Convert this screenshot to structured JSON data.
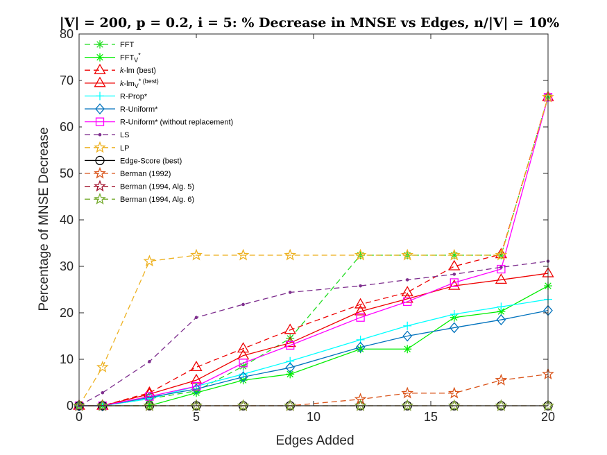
{
  "chart_data": {
    "type": "line",
    "title": "|V| = 200, p = 0.2, i = 5: % Decrease in MNSE vs Edges, n/|V| = 10%",
    "xlabel": "Edges Added",
    "ylabel": "Percentage of MNSE Decrease",
    "xlim": [
      0,
      20
    ],
    "ylim": [
      0,
      80
    ],
    "xticks": [
      0,
      5,
      10,
      15,
      20
    ],
    "yticks": [
      0,
      10,
      20,
      30,
      40,
      50,
      60,
      70,
      80
    ],
    "grid": false,
    "legend_position": "top-left",
    "x": [
      0,
      1,
      3,
      5,
      7,
      9,
      12,
      14,
      16,
      18,
      20
    ],
    "series": [
      {
        "name": "FFT",
        "legend": [
          {
            "t": "FFT"
          }
        ],
        "color": "#22dd22",
        "dash": "8,5",
        "marker": "asterisk",
        "values": [
          0,
          0,
          1.5,
          3.2,
          8.5,
          14.5,
          32.4,
          32.4,
          32.4,
          32.4,
          66.4
        ]
      },
      {
        "name": "FFT_V*",
        "legend": [
          {
            "t": "FFT"
          },
          {
            "t": "V",
            "sub": true
          },
          {
            "t": "*",
            "sup": true
          }
        ],
        "color": "#00ee00",
        "dash": "",
        "marker": "asterisk",
        "values": [
          0,
          0,
          0,
          2.8,
          5.5,
          6.8,
          12.2,
          12.2,
          19,
          20.3,
          25.8
        ]
      },
      {
        "name": "k-lm (best)",
        "legend": [
          {
            "t": "k",
            "italic": true
          },
          {
            "t": "-lm (best)"
          }
        ],
        "color": "#ee0000",
        "dash": "8,5",
        "marker": "triangle",
        "values": [
          0,
          0,
          2.8,
          8.3,
          12.3,
          16.3,
          21.8,
          24.4,
          30,
          32.6,
          66.4
        ]
      },
      {
        "name": "k-lm_V* (best)",
        "legend": [
          {
            "t": "k",
            "italic": true
          },
          {
            "t": "-lm"
          },
          {
            "t": "V",
            "sub": true
          },
          {
            "t": "* (best)",
            "sup": true
          }
        ],
        "color": "#ee0000",
        "dash": "",
        "marker": "triangle",
        "values": [
          0,
          0,
          2.5,
          5.5,
          10.8,
          13.5,
          20.3,
          23,
          25.8,
          27.1,
          28.5
        ]
      },
      {
        "name": "R-Prop*",
        "legend": [
          {
            "t": "R-Prop*"
          }
        ],
        "color": "#00ffff",
        "dash": "",
        "marker": "plus",
        "values": [
          0,
          0,
          1.5,
          4.2,
          6.8,
          9.6,
          14.2,
          17.2,
          19.7,
          21.3,
          22.9
        ]
      },
      {
        "name": "R-Uniform*",
        "legend": [
          {
            "t": "R-Uniform*"
          }
        ],
        "color": "#0072bd",
        "dash": "",
        "marker": "diamond",
        "values": [
          0,
          0,
          1.8,
          3.6,
          6.2,
          8.2,
          12.6,
          15,
          16.8,
          18.5,
          20.5
        ]
      },
      {
        "name": "R-Uniform* (without replacement)",
        "legend": [
          {
            "t": "R-Uniform* (without replacement)"
          }
        ],
        "color": "#ff00ff",
        "dash": "",
        "marker": "square",
        "values": [
          0,
          0,
          2,
          4.2,
          9.2,
          13,
          19,
          22.4,
          26.5,
          29.4,
          66.4
        ]
      },
      {
        "name": "LS",
        "legend": [
          {
            "t": "LS"
          }
        ],
        "color": "#7e2f8e",
        "dash": "8,5",
        "marker": "dot",
        "values": [
          0,
          2.8,
          9.5,
          19,
          21.8,
          24.4,
          25.8,
          27.1,
          28.3,
          29.8,
          31.1
        ]
      },
      {
        "name": "LP",
        "legend": [
          {
            "t": "LP"
          }
        ],
        "color": "#edb120",
        "dash": "8,5",
        "marker": "star",
        "values": [
          0,
          8.3,
          31.1,
          32.4,
          32.4,
          32.4,
          32.4,
          32.4,
          32.4,
          32.4,
          66.4
        ]
      },
      {
        "name": "Edge-Score (best)",
        "legend": [
          {
            "t": "Edge-Score (best)"
          }
        ],
        "color": "#000000",
        "dash": "",
        "marker": "circle",
        "values": [
          0,
          0,
          0,
          0,
          0,
          0,
          0,
          0,
          0,
          0,
          0
        ]
      },
      {
        "name": "Berman (1992)",
        "legend": [
          {
            "t": "Berman (1992)"
          }
        ],
        "color": "#d95319",
        "dash": "8,5",
        "marker": "star",
        "values": [
          0,
          0,
          0,
          0,
          0,
          0,
          1.4,
          2.7,
          2.7,
          5.5,
          6.8
        ]
      },
      {
        "name": "Berman (1994, Alg. 5)",
        "legend": [
          {
            "t": "Berman (1994, Alg. 5)"
          }
        ],
        "color": "#a2142f",
        "dash": "8,5",
        "marker": "star",
        "values": [
          0,
          0,
          0,
          0,
          0,
          0,
          0,
          0,
          0,
          0,
          0
        ]
      },
      {
        "name": "Berman (1994, Alg. 6)",
        "legend": [
          {
            "t": "Berman (1994, Alg. 6)"
          }
        ],
        "color": "#77ac30",
        "dash": "8,5",
        "marker": "star",
        "values": [
          0,
          0,
          0,
          0,
          0,
          0,
          0,
          0,
          0,
          0,
          0
        ]
      }
    ]
  }
}
